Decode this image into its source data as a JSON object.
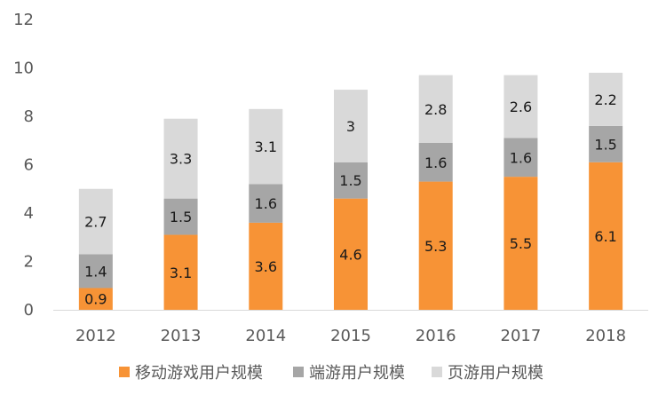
{
  "chart_data": {
    "type": "bar",
    "stacked": true,
    "categories": [
      "2012",
      "2013",
      "2014",
      "2015",
      "2016",
      "2017",
      "2018"
    ],
    "series": [
      {
        "name": "移动游戏用户规模",
        "color": "#F79336",
        "values": [
          0.9,
          3.1,
          3.6,
          4.6,
          5.3,
          5.5,
          6.1
        ]
      },
      {
        "name": "端游用户规模",
        "color": "#A6A6A6",
        "values": [
          1.4,
          1.5,
          1.6,
          1.5,
          1.6,
          1.6,
          1.5
        ]
      },
      {
        "name": "页游用户规模",
        "color": "#D9D9D9",
        "values": [
          2.7,
          3.3,
          3.1,
          3,
          2.8,
          2.6,
          2.2
        ]
      }
    ],
    "data_labels": [
      [
        "0.9",
        "3.1",
        "3.6",
        "4.6",
        "5.3",
        "5.5",
        "6.1"
      ],
      [
        "1.4",
        "1.5",
        "1.6",
        "1.5",
        "1.6",
        "1.6",
        "1.5"
      ],
      [
        "2.7",
        "3.3",
        "3.1",
        "3",
        "2.8",
        "2.6",
        "2.2"
      ]
    ],
    "y_ticks": [
      "0",
      "2",
      "4",
      "6",
      "8",
      "10",
      "12"
    ],
    "ylim": [
      0,
      12
    ],
    "grid": false,
    "legend_position": "bottom",
    "title": "",
    "xlabel": "",
    "ylabel": ""
  }
}
